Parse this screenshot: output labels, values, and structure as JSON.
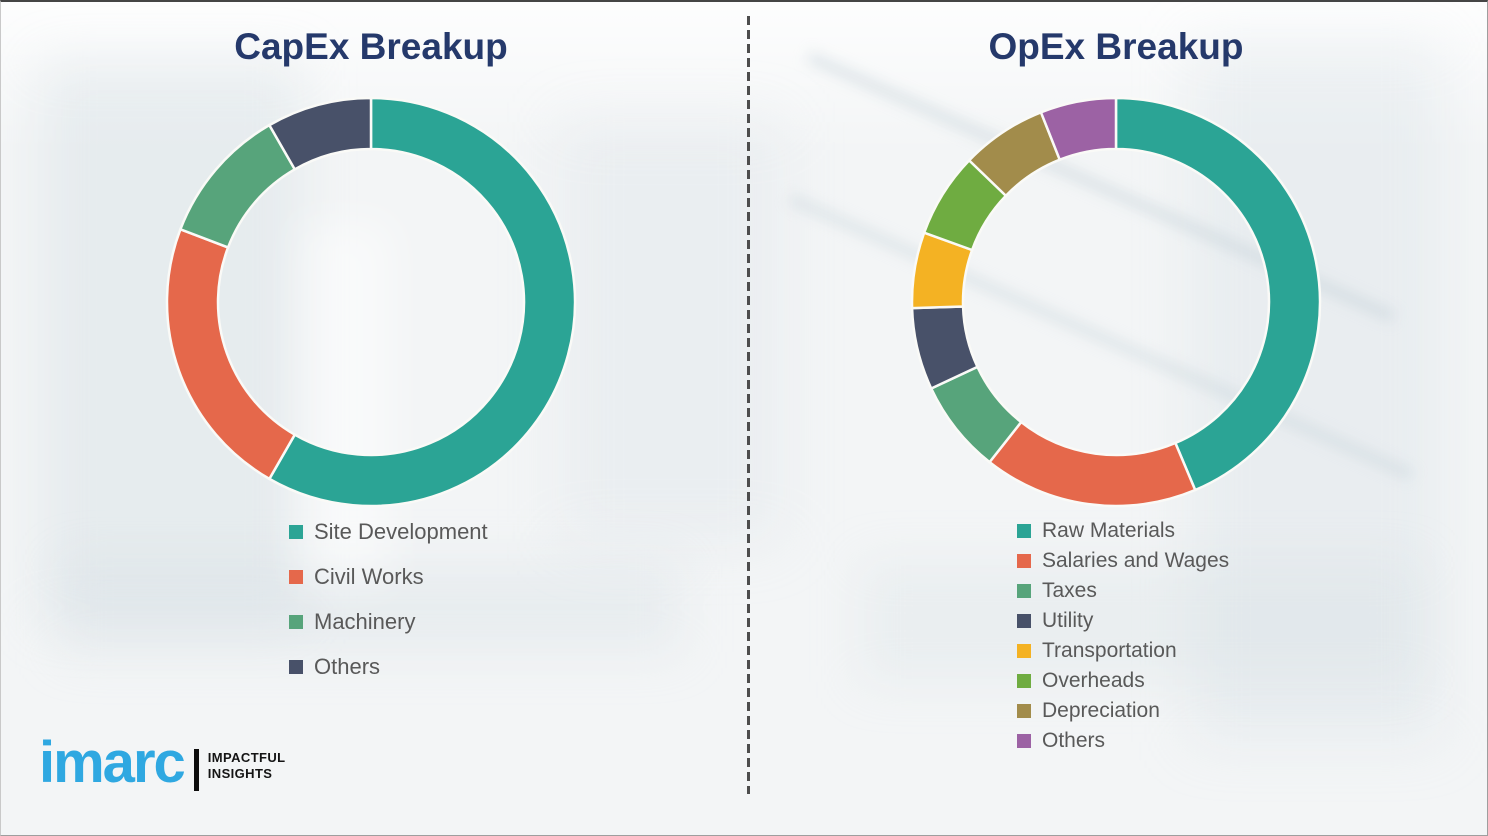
{
  "chart_data": [
    {
      "type": "pie",
      "subtype": "donut",
      "title": "CapEx Breakup",
      "legend_position": "below-chart-left",
      "data_labels_shown": false,
      "categories": [
        "Site Development",
        "Civil Works",
        "Machinery",
        "Others"
      ],
      "values": [
        58.3,
        22.5,
        10.9,
        8.3
      ],
      "values_note": "percent, estimated from arc angles (no numeric labels shown)",
      "colors": [
        "#2BA495",
        "#E5684B",
        "#57A47B",
        "#485169"
      ]
    },
    {
      "type": "pie",
      "subtype": "donut",
      "title": "OpEx Breakup",
      "legend_position": "below-chart-left",
      "data_labels_shown": false,
      "categories": [
        "Raw Materials",
        "Salaries and Wages",
        "Taxes",
        "Utility",
        "Transportation",
        "Overheads",
        "Depreciation",
        "Others"
      ],
      "values": [
        43.7,
        17.0,
        7.4,
        6.5,
        6.0,
        6.7,
        6.8,
        6.0
      ],
      "values_note": "percent, estimated from arc angles (no numeric labels shown)",
      "colors": [
        "#2BA495",
        "#E5684B",
        "#57A47B",
        "#485169",
        "#F4B223",
        "#6FAC41",
        "#A28C4B",
        "#9C62A4"
      ]
    }
  ],
  "logo": {
    "brand": "imarc",
    "tagline_line1": "IMPACTFUL",
    "tagline_line2": "INSIGHTS",
    "brand_color": "#2FA8E1"
  },
  "colors": {
    "title_text": "#25396B",
    "legend_text": "#595959",
    "divider": "#4D4D4D",
    "background": "#F3F5F6",
    "segment_gap": "#FAFAF7"
  }
}
